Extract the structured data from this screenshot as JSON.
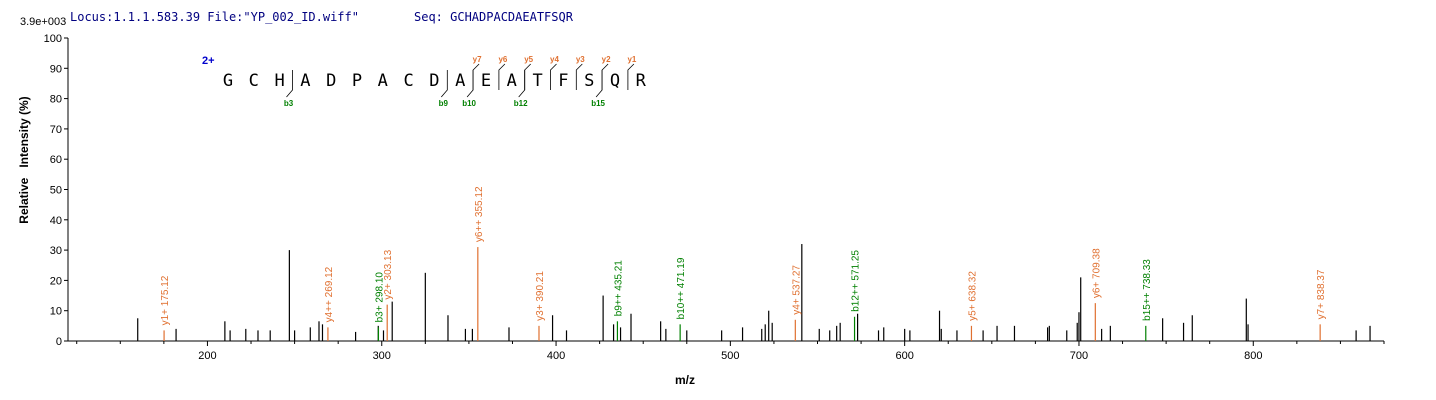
{
  "header": {
    "locus_text": "Locus:1.1.1.583.39 File:\"YP_002_ID.wiff\"",
    "seq_text": "Seq: GCHADPACDAEATFSQR",
    "max_intensity": "3.9e+003"
  },
  "colors": {
    "y_ion": "#e07030",
    "b_ion": "#008000",
    "charge": "#0000cc",
    "peak": "#000000"
  },
  "chart_data": {
    "type": "bar",
    "xlabel": "m/z",
    "ylabel": "Relative   Intensity (%)",
    "xlim": [
      120,
      875
    ],
    "ylim": [
      0,
      100
    ],
    "x_ticks": [
      200,
      300,
      400,
      500,
      600,
      700,
      800
    ],
    "y_ticks": [
      0,
      10,
      20,
      30,
      40,
      50,
      60,
      70,
      80,
      90,
      100
    ],
    "peaks": [
      {
        "mz": 160.0,
        "intensity": 7.5
      },
      {
        "mz": 175.12,
        "intensity": 3.5,
        "label": "y1+ 175.12",
        "ion": "y"
      },
      {
        "mz": 182.0,
        "intensity": 4.0
      },
      {
        "mz": 210.0,
        "intensity": 6.5
      },
      {
        "mz": 213.0,
        "intensity": 3.5
      },
      {
        "mz": 222.0,
        "intensity": 4.0
      },
      {
        "mz": 229.0,
        "intensity": 3.5
      },
      {
        "mz": 236.0,
        "intensity": 3.5
      },
      {
        "mz": 247.0,
        "intensity": 30.0
      },
      {
        "mz": 250.0,
        "intensity": 3.5
      },
      {
        "mz": 259.0,
        "intensity": 4.5
      },
      {
        "mz": 264.0,
        "intensity": 6.5
      },
      {
        "mz": 266.0,
        "intensity": 5.5
      },
      {
        "mz": 269.12,
        "intensity": 4.5,
        "label": "y4++ 269.12",
        "ion": "y"
      },
      {
        "mz": 285.0,
        "intensity": 3.0
      },
      {
        "mz": 298.0,
        "intensity": 5.0
      },
      {
        "mz": 298.1,
        "intensity": 4.5,
        "label": "b3+ 298.10",
        "ion": "b"
      },
      {
        "mz": 301.0,
        "intensity": 3.5
      },
      {
        "mz": 303.13,
        "intensity": 12.0,
        "label": "y2+ 303.13",
        "ion": "y"
      },
      {
        "mz": 306.0,
        "intensity": 13.0
      },
      {
        "mz": 325.0,
        "intensity": 22.5
      },
      {
        "mz": 338.0,
        "intensity": 8.5
      },
      {
        "mz": 348.0,
        "intensity": 4.0
      },
      {
        "mz": 352.0,
        "intensity": 4.0
      },
      {
        "mz": 355.12,
        "intensity": 31.0,
        "label": "y6++ 355.12",
        "ion": "y"
      },
      {
        "mz": 373.0,
        "intensity": 4.5
      },
      {
        "mz": 390.21,
        "intensity": 5.0,
        "label": "y3+ 390.21",
        "ion": "y"
      },
      {
        "mz": 398.0,
        "intensity": 8.5
      },
      {
        "mz": 406.0,
        "intensity": 3.5
      },
      {
        "mz": 427.0,
        "intensity": 15.0
      },
      {
        "mz": 433.0,
        "intensity": 5.5
      },
      {
        "mz": 435.21,
        "intensity": 6.5,
        "label": "b9++ 435.21",
        "ion": "b"
      },
      {
        "mz": 437.0,
        "intensity": 4.5
      },
      {
        "mz": 443.0,
        "intensity": 9.0
      },
      {
        "mz": 460.0,
        "intensity": 6.5
      },
      {
        "mz": 463.0,
        "intensity": 4.0
      },
      {
        "mz": 471.19,
        "intensity": 5.5,
        "label": "b10++ 471.19",
        "ion": "b"
      },
      {
        "mz": 475.0,
        "intensity": 3.5
      },
      {
        "mz": 495.0,
        "intensity": 3.5
      },
      {
        "mz": 507.0,
        "intensity": 4.5
      },
      {
        "mz": 518.0,
        "intensity": 4.0
      },
      {
        "mz": 520.0,
        "intensity": 5.5
      },
      {
        "mz": 522.0,
        "intensity": 10.0
      },
      {
        "mz": 524.0,
        "intensity": 6.0
      },
      {
        "mz": 537.27,
        "intensity": 7.0,
        "label": "y4+ 537.27",
        "ion": "y"
      },
      {
        "mz": 541.0,
        "intensity": 32.0
      },
      {
        "mz": 551.0,
        "intensity": 4.0
      },
      {
        "mz": 557.0,
        "intensity": 3.5
      },
      {
        "mz": 561.0,
        "intensity": 5.0
      },
      {
        "mz": 563.0,
        "intensity": 6.0
      },
      {
        "mz": 571.25,
        "intensity": 8.0,
        "label": "b12++ 571.25",
        "ion": "b"
      },
      {
        "mz": 573.0,
        "intensity": 9.0
      },
      {
        "mz": 585.0,
        "intensity": 3.5
      },
      {
        "mz": 588.0,
        "intensity": 4.5
      },
      {
        "mz": 600.0,
        "intensity": 4.0
      },
      {
        "mz": 603.0,
        "intensity": 3.5
      },
      {
        "mz": 620.0,
        "intensity": 10.0
      },
      {
        "mz": 621.0,
        "intensity": 4.0
      },
      {
        "mz": 630.0,
        "intensity": 3.5
      },
      {
        "mz": 638.32,
        "intensity": 5.0,
        "label": "y5+ 638.32",
        "ion": "y"
      },
      {
        "mz": 645.0,
        "intensity": 3.5
      },
      {
        "mz": 653.0,
        "intensity": 5.0
      },
      {
        "mz": 663.0,
        "intensity": 5.0
      },
      {
        "mz": 682.0,
        "intensity": 4.5
      },
      {
        "mz": 683.0,
        "intensity": 5.0
      },
      {
        "mz": 693.0,
        "intensity": 3.5
      },
      {
        "mz": 699.0,
        "intensity": 6.0
      },
      {
        "mz": 700.0,
        "intensity": 9.5
      },
      {
        "mz": 701.0,
        "intensity": 21.0
      },
      {
        "mz": 709.38,
        "intensity": 12.5,
        "label": "y6+ 709.38",
        "ion": "y"
      },
      {
        "mz": 713.0,
        "intensity": 4.0
      },
      {
        "mz": 718.0,
        "intensity": 5.0
      },
      {
        "mz": 738.33,
        "intensity": 5.0,
        "label": "b15++ 738.33",
        "ion": "b"
      },
      {
        "mz": 748.0,
        "intensity": 7.5
      },
      {
        "mz": 760.0,
        "intensity": 6.0
      },
      {
        "mz": 765.0,
        "intensity": 8.5
      },
      {
        "mz": 796.0,
        "intensity": 14.0
      },
      {
        "mz": 797.0,
        "intensity": 5.5
      },
      {
        "mz": 838.37,
        "intensity": 5.5,
        "label": "y7+ 838.37",
        "ion": "y"
      },
      {
        "mz": 859.0,
        "intensity": 3.5
      },
      {
        "mz": 867.0,
        "intensity": 5.0
      }
    ],
    "annotation": {
      "charge": "2+",
      "sequence": [
        "G",
        "C",
        "H",
        "A",
        "D",
        "P",
        "A",
        "C",
        "D",
        "A",
        "E",
        "A",
        "T",
        "F",
        "S",
        "Q",
        "R"
      ],
      "y_ions": [
        {
          "label": "y7",
          "after_index": 9
        },
        {
          "label": "y6",
          "after_index": 10
        },
        {
          "label": "y5",
          "after_index": 11
        },
        {
          "label": "y4",
          "after_index": 12
        },
        {
          "label": "y3",
          "after_index": 13
        },
        {
          "label": "y2",
          "after_index": 14
        },
        {
          "label": "y1",
          "after_index": 15
        }
      ],
      "b_ions": [
        {
          "label": "b3",
          "after_index": 2
        },
        {
          "label": "b9",
          "after_index": 8
        },
        {
          "label": "b10",
          "after_index": 9
        },
        {
          "label": "b12",
          "after_index": 11
        },
        {
          "label": "b15",
          "after_index": 14
        }
      ]
    }
  }
}
